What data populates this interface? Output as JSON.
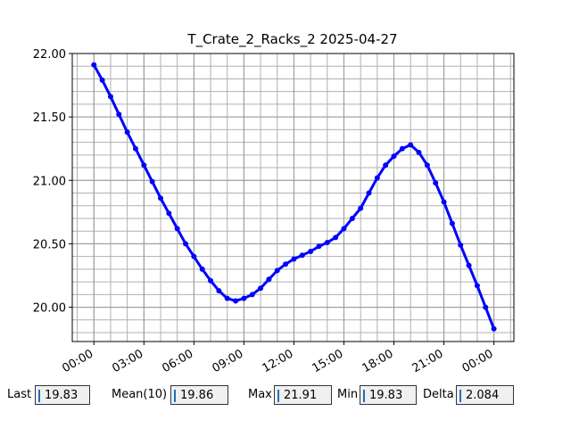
{
  "chart_data": {
    "type": "line",
    "title": "T_Crate_2_Racks_2 2025-04-27",
    "x": [
      0,
      0.5,
      1,
      1.5,
      2,
      2.5,
      3,
      3.5,
      4,
      4.5,
      5,
      5.5,
      6,
      6.5,
      7,
      7.5,
      8,
      8.5,
      9,
      9.5,
      10,
      10.5,
      11,
      11.5,
      12,
      12.5,
      13,
      13.5,
      14,
      14.5,
      15,
      15.5,
      16,
      16.5,
      17,
      17.5,
      18,
      18.5,
      19,
      19.5,
      20,
      20.5,
      21,
      21.5,
      22,
      22.5,
      23,
      23.5,
      24
    ],
    "series": [
      {
        "color": "#0000ff",
        "values": [
          21.91,
          21.79,
          21.66,
          21.52,
          21.38,
          21.25,
          21.12,
          20.99,
          20.86,
          20.74,
          20.62,
          20.5,
          20.4,
          20.3,
          20.21,
          20.13,
          20.07,
          20.05,
          20.07,
          20.1,
          20.15,
          20.22,
          20.29,
          20.34,
          20.38,
          20.41,
          20.44,
          20.48,
          20.51,
          20.55,
          20.62,
          20.7,
          20.78,
          20.9,
          21.02,
          21.12,
          21.19,
          21.25,
          21.28,
          21.22,
          21.12,
          20.98,
          20.83,
          20.66,
          20.49,
          20.33,
          20.17,
          20,
          19.83
        ]
      }
    ],
    "xlim": [
      -1.3,
      25.2
    ],
    "xticks": [
      {
        "value": 0,
        "label": "00:00"
      },
      {
        "value": 3,
        "label": "03:00"
      },
      {
        "value": 6,
        "label": "06:00"
      },
      {
        "value": 9,
        "label": "09:00"
      },
      {
        "value": 12,
        "label": "12:00"
      },
      {
        "value": 15,
        "label": "15:00"
      },
      {
        "value": 18,
        "label": "18:00"
      },
      {
        "value": 21,
        "label": "21:00"
      },
      {
        "value": 24,
        "label": "00:00"
      }
    ],
    "ylim": [
      19.73,
      22.0
    ],
    "yticks": [
      {
        "value": 20,
        "label": "20.00"
      },
      {
        "value": 20.5,
        "label": "20.50"
      },
      {
        "value": 21,
        "label": "21.00"
      },
      {
        "value": 21.5,
        "label": "21.50"
      },
      {
        "value": 22,
        "label": "22.00"
      }
    ],
    "grid": true
  },
  "stats": [
    {
      "label": "Last",
      "value": 19.83
    },
    {
      "label": "Mean(10)",
      "value": 19.86
    },
    {
      "label": "Max",
      "value": 21.91
    },
    {
      "label": "Min",
      "value": 19.83
    },
    {
      "label": "Delta",
      "value": 2.084
    }
  ]
}
